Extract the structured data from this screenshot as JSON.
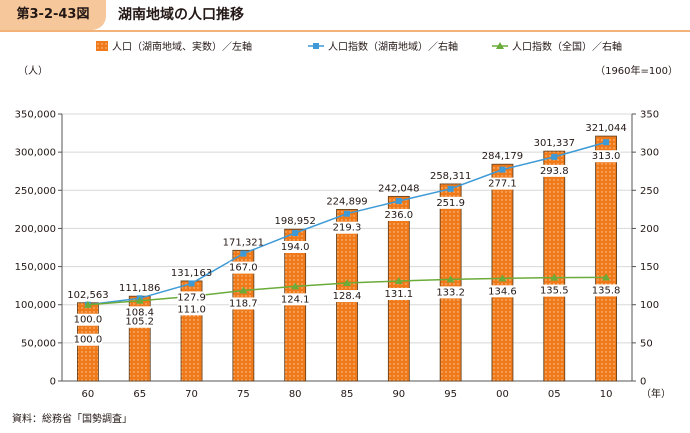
{
  "figure": {
    "number": "第3-2-43図",
    "title": "湖南地域の人口推移"
  },
  "source": "資料：総務省「国勢調査」",
  "chart_data": {
    "type": "bar",
    "categories": [
      "60",
      "65",
      "70",
      "75",
      "80",
      "85",
      "90",
      "95",
      "00",
      "05",
      "10"
    ],
    "x_unit": "（年）",
    "left_axis": {
      "unit": "（人）",
      "range": [
        0,
        350000
      ],
      "ticks": [
        "0",
        "50,000",
        "100,000",
        "150,000",
        "200,000",
        "250,000",
        "300,000",
        "350,000"
      ]
    },
    "right_axis": {
      "note": "（1960年=100）",
      "range": [
        0,
        350
      ],
      "ticks": [
        "0",
        "50",
        "100",
        "150",
        "200",
        "250",
        "300",
        "350"
      ]
    },
    "series": [
      {
        "name": "人口（湖南地域、実数）／左軸",
        "type": "bar",
        "axis": "left",
        "color": "#f07a1a",
        "values": [
          102563,
          111186,
          131163,
          171321,
          198952,
          224899,
          242048,
          258311,
          284179,
          301337,
          321044
        ],
        "labels": [
          "102,563",
          "111,186",
          "131,163",
          "171,321",
          "198,952",
          "224,899",
          "242,048",
          "258,311",
          "284,179",
          "301,337",
          "321,044"
        ]
      },
      {
        "name": "人口指数（湖南地域）／右軸",
        "type": "line",
        "axis": "right",
        "color": "#3d9ad6",
        "marker": "square",
        "values": [
          100.0,
          108.4,
          127.9,
          167.0,
          194.0,
          219.3,
          236.0,
          251.9,
          277.1,
          293.8,
          313.0
        ],
        "labels": [
          "100.0",
          "108.4",
          "127.9",
          "167.0",
          "194.0",
          "219.3",
          "236.0",
          "251.9",
          "277.1",
          "293.8",
          "313.0"
        ]
      },
      {
        "name": "人口指数（全国）／右軸",
        "type": "line",
        "axis": "right",
        "color": "#6bab3a",
        "marker": "triangle",
        "values": [
          100.0,
          105.2,
          111.0,
          118.7,
          124.1,
          128.4,
          131.1,
          133.2,
          134.6,
          135.5,
          135.8
        ],
        "labels": [
          "100.0",
          "105.2",
          "111.0",
          "118.7",
          "124.1",
          "128.4",
          "131.1",
          "133.2",
          "134.6",
          "135.5",
          "135.8"
        ]
      }
    ],
    "grid": true,
    "legend_position": "top"
  }
}
